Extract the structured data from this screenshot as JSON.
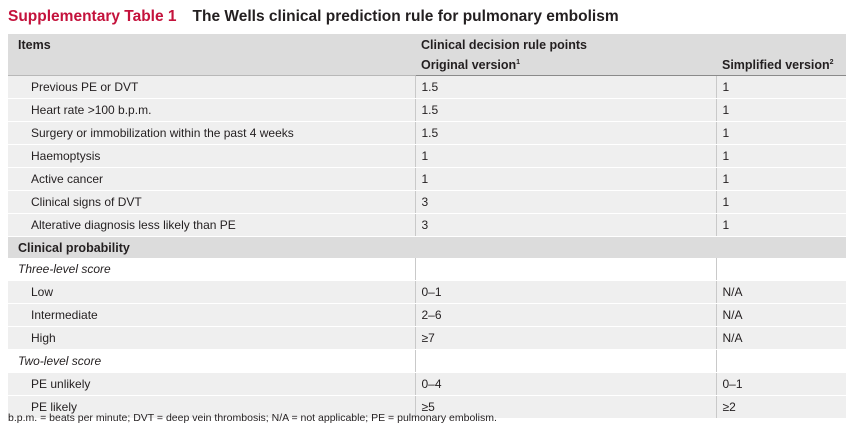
{
  "title": {
    "label": "Supplementary Table 1",
    "text": "The Wells clinical prediction rule for pulmonary embolism"
  },
  "header": {
    "items": "Items",
    "points": "Clinical decision rule points",
    "original": "Original version",
    "original_ref": "1",
    "simplified": "Simplified version",
    "simplified_ref": "2"
  },
  "items": [
    {
      "name": "Previous PE or DVT",
      "original": "1.5",
      "simplified": "1"
    },
    {
      "name": "Heart rate >100 b.p.m.",
      "original": "1.5",
      "simplified": "1"
    },
    {
      "name": "Surgery or immobilization within the past 4 weeks",
      "original": "1.5",
      "simplified": "1"
    },
    {
      "name": "Haemoptysis",
      "original": "1",
      "simplified": "1"
    },
    {
      "name": "Active cancer",
      "original": "1",
      "simplified": "1"
    },
    {
      "name": "Clinical signs of DVT",
      "original": "3",
      "simplified": "1"
    },
    {
      "name": "Alterative diagnosis less likely than PE",
      "original": "3",
      "simplified": "1"
    }
  ],
  "probability": {
    "heading": "Clinical probability",
    "three_level": {
      "label": "Three-level score",
      "rows": [
        {
          "name": "Low",
          "original": "0–1",
          "simplified": "N/A"
        },
        {
          "name": "Intermediate",
          "original": "2–6",
          "simplified": "N/A"
        },
        {
          "name": "High",
          "original": "≥7",
          "simplified": "N/A"
        }
      ]
    },
    "two_level": {
      "label": "Two-level score",
      "rows": [
        {
          "name": "PE unlikely",
          "original": "0–4",
          "simplified": "0–1"
        },
        {
          "name": "PE likely",
          "original": "≥5",
          "simplified": "≥2"
        }
      ]
    }
  },
  "footnote": "b.p.m. = beats per minute; DVT = deep vein thrombosis; N/A = not applicable; PE = pulmonary embolism."
}
